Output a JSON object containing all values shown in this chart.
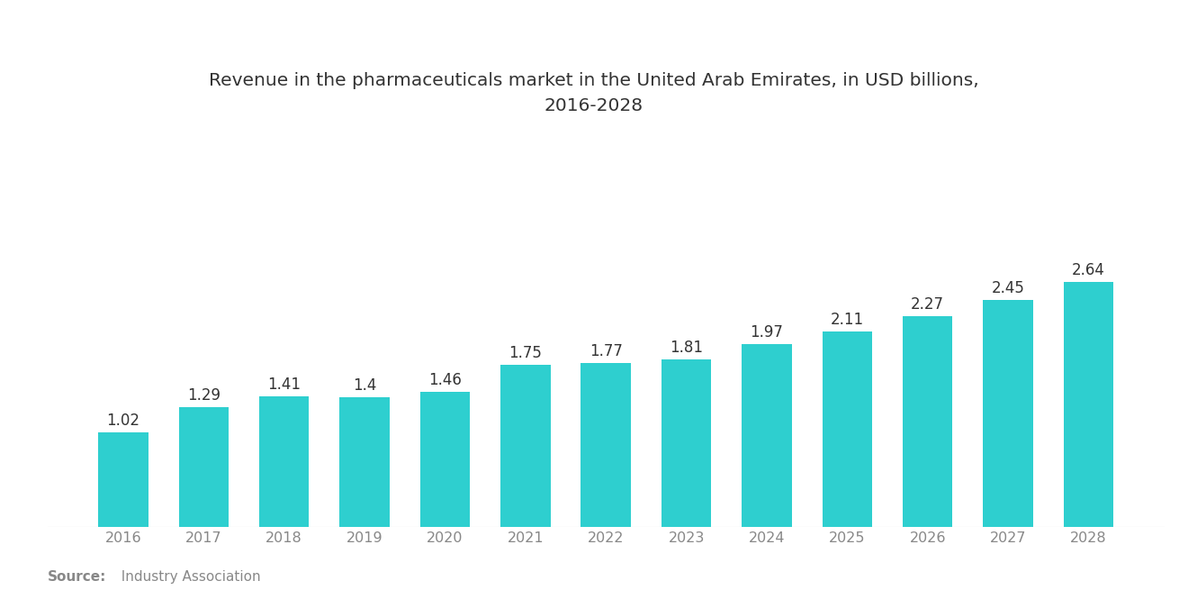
{
  "title": "Revenue in the pharmaceuticals market in the United Arab Emirates, in USD billions,\n2016-2028",
  "years": [
    2016,
    2017,
    2018,
    2019,
    2020,
    2021,
    2022,
    2023,
    2024,
    2025,
    2026,
    2027,
    2028
  ],
  "values": [
    1.02,
    1.29,
    1.41,
    1.4,
    1.46,
    1.75,
    1.77,
    1.81,
    1.97,
    2.11,
    2.27,
    2.45,
    2.64
  ],
  "bar_color": "#2ECFCF",
  "background_color": "#ffffff",
  "title_color": "#333333",
  "label_color": "#333333",
  "tick_color": "#888888",
  "source_bold": "Source:",
  "source_text": "  Industry Association",
  "title_fontsize": 14.5,
  "label_fontsize": 12,
  "tick_fontsize": 11.5,
  "source_fontsize": 11
}
